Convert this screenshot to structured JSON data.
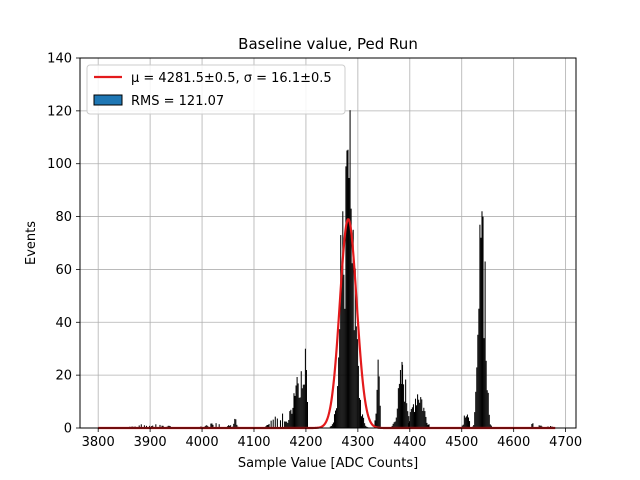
{
  "chart_data": {
    "type": "bar",
    "title": "Baseline value, Ped Run",
    "xlabel": "Sample Value [ADC Counts]",
    "ylabel": "Events",
    "xlim": [
      3765,
      4720
    ],
    "ylim": [
      0,
      140
    ],
    "xticks": [
      "3800",
      "3900",
      "4000",
      "4100",
      "4200",
      "4300",
      "4400",
      "4500",
      "4600",
      "4700"
    ],
    "yticks": [
      "0",
      "20",
      "40",
      "60",
      "80",
      "100",
      "120",
      "140"
    ],
    "grid": true,
    "legend_position": "upper-left",
    "legend": {
      "fit_label": "μ = 4281.5±0.5, σ = 16.1±0.5",
      "hist_label": "RMS = 121.07"
    },
    "colors": {
      "bars": "#000000",
      "fit_line": "#e31a1c",
      "hist_patch": "#1f77b4",
      "grid": "#b0b0b0"
    },
    "fit": {
      "mu": 4281.5,
      "sigma": 16.1,
      "amplitude": 79
    },
    "bin_width": 2,
    "clusters": [
      {
        "x_start": 3860,
        "x_end": 3940,
        "peak_x": 3900,
        "peak_y": 1.2,
        "sigma": 30
      },
      {
        "x_start": 3990,
        "x_end": 4070,
        "peak_x": 4030,
        "peak_y": 1.8,
        "sigma": 20
      },
      {
        "x_start": 4058,
        "x_end": 4068,
        "peak_x": 4062,
        "peak_y": 3,
        "sigma": 3
      },
      {
        "x_start": 4120,
        "x_end": 4165,
        "peak_x": 4150,
        "peak_y": 4,
        "sigma": 15
      },
      {
        "x_start": 4160,
        "x_end": 4200,
        "peak_x": 4185,
        "peak_y": 20,
        "sigma": 10
      },
      {
        "x_start": 4190,
        "x_end": 4204,
        "peak_x": 4197,
        "peak_y": 30,
        "sigma": 3
      },
      {
        "x_start": 4244,
        "x_end": 4320,
        "peak_x": 4281,
        "peak_y": 88,
        "sigma": 11
      },
      {
        "x_start": 4332,
        "x_end": 4344,
        "peak_x": 4338,
        "peak_y": 20,
        "sigma": 3
      },
      {
        "x_start": 4365,
        "x_end": 4400,
        "peak_x": 4385,
        "peak_y": 18,
        "sigma": 8
      },
      {
        "x_start": 4396,
        "x_end": 4438,
        "peak_x": 4415,
        "peak_y": 13,
        "sigma": 10
      },
      {
        "x_start": 4500,
        "x_end": 4516,
        "peak_x": 4508,
        "peak_y": 7,
        "sigma": 4
      },
      {
        "x_start": 4516,
        "x_end": 4560,
        "peak_x": 4538,
        "peak_y": 70,
        "sigma": 6
      },
      {
        "x_start": 4628,
        "x_end": 4660,
        "peak_x": 4640,
        "peak_y": 2,
        "sigma": 8
      },
      {
        "x_start": 4662,
        "x_end": 4680,
        "peak_x": 4670,
        "peak_y": 0.6,
        "sigma": 8
      }
    ],
    "spikes": [
      {
        "x": 4278,
        "y": 105
      },
      {
        "x": 4280,
        "y": 96
      },
      {
        "x": 4276,
        "y": 99
      },
      {
        "x": 4270,
        "y": 82
      },
      {
        "x": 4266,
        "y": 73
      },
      {
        "x": 4286,
        "y": 83
      },
      {
        "x": 4290,
        "y": 75
      },
      {
        "x": 4198,
        "y": 30
      },
      {
        "x": 4338,
        "y": 25
      },
      {
        "x": 4384,
        "y": 25
      },
      {
        "x": 4538,
        "y": 82
      },
      {
        "x": 4540,
        "y": 80
      },
      {
        "x": 4536,
        "y": 72
      },
      {
        "x": 4544,
        "y": 63
      }
    ]
  }
}
